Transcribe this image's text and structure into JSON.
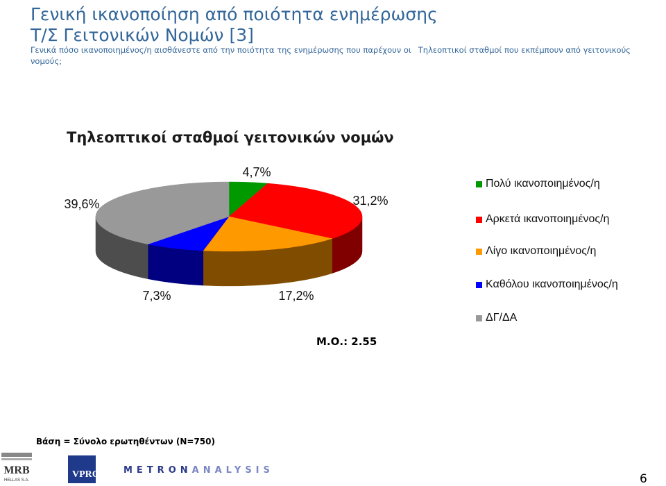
{
  "header": {
    "title_line1": "Γενική ικανοποίηση από ποιότητα ενημέρωσης",
    "title_line2": "Τ/Σ Γειτονικών Νομών [3]",
    "question_part1": "Γενικά πόσο ικανοποιημένος/η αισθάνεστε από την ποιότητα της ενημέρωσης που παρέχουν οι",
    "question_part2": "Τηλεοπτικοί σταθμοί που εκπέμπουν από γειτονικούς νομούς;"
  },
  "chart_data": {
    "type": "pie",
    "title": "Τηλεοπτικοί σταθμοί γειτονικών νομών",
    "slices": [
      {
        "name": "Πολύ ικανοποιημένος/η",
        "value": 4.7,
        "label": "4,7%",
        "color": "#009900",
        "side_color": "#004d00"
      },
      {
        "name": "Αρκετά ικανοποιημένος/η",
        "value": 31.2,
        "label": "31,2%",
        "color": "#ff0000",
        "side_color": "#800000"
      },
      {
        "name": "Λίγο ικανοποιημένος/η",
        "value": 17.2,
        "label": "17,2%",
        "color": "#ff9900",
        "side_color": "#804d00"
      },
      {
        "name": "Καθόλου ικανοποιημένος/η",
        "value": 7.3,
        "label": "7,3%",
        "color": "#0000ff",
        "side_color": "#000080"
      },
      {
        "name": "ΔΓ/ΔΑ",
        "value": 39.6,
        "label": "39,6%",
        "color": "#999999",
        "side_color": "#4d4d4d"
      }
    ],
    "legend_position": "right"
  },
  "mean_label": "Μ.Ο.: 2.55",
  "base_label": "Βάση = Σύνολο ερωτηθέντων (N=750)",
  "page_number": "6",
  "logos": {
    "mrb": "MRB",
    "mrb_sub": "HELLAS S.A.",
    "vprc": "VPRC",
    "metron_a": "METRON",
    "metron_b": "ANALYSIS"
  }
}
